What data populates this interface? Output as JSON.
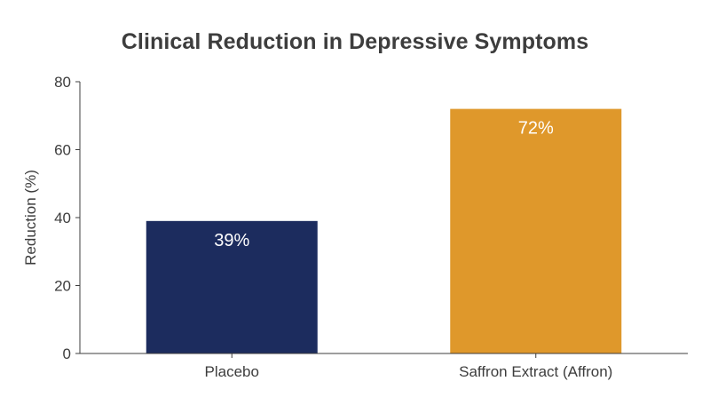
{
  "chart_data": {
    "type": "bar",
    "title": "Clinical Reduction in Depressive Symptoms",
    "xlabel": "",
    "ylabel": "Reduction (%)",
    "categories": [
      "Placebo",
      "Saffron Extract (Affron)"
    ],
    "values": [
      39,
      72
    ],
    "data_labels": [
      "39%",
      "72%"
    ],
    "colors": [
      "#1c2c5e",
      "#df982b"
    ],
    "ylim": [
      0,
      80
    ],
    "yticks": [
      0,
      20,
      40,
      60,
      80
    ],
    "grid": false,
    "legend": false
  }
}
